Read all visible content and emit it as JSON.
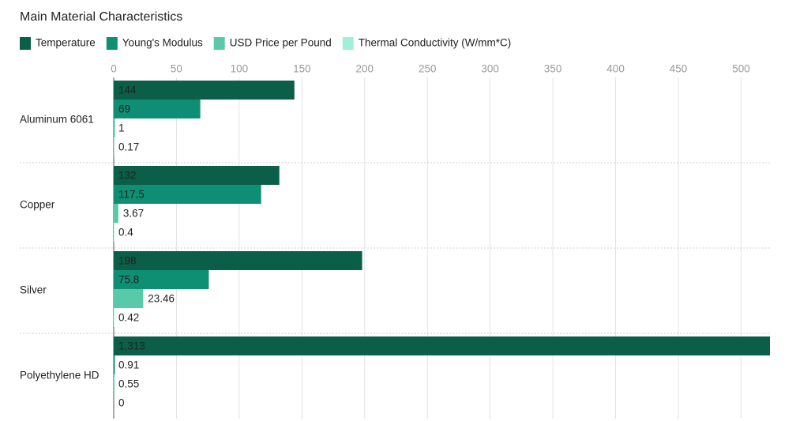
{
  "chart_data": {
    "type": "hbar",
    "title": "Main Material Characteristics",
    "categories": [
      "Aluminum 6061",
      "Copper",
      "Silver",
      "Polyethylene HD"
    ],
    "series": [
      {
        "name": "Temperature",
        "color": "#0b5e47",
        "values": [
          144,
          132,
          198,
          1313
        ],
        "value_labels": [
          "144",
          "132",
          "198",
          "1,313"
        ]
      },
      {
        "name": "Young's Modulus",
        "color": "#0e8f74",
        "values": [
          69,
          117.5,
          75.8,
          0.91
        ]
      },
      {
        "name": "USD Price per Pound",
        "color": "#58c9a9",
        "values": [
          1,
          3.67,
          23.46,
          0.55
        ]
      },
      {
        "name": "Thermal Conductivity (W/mm*C)",
        "color": "#9ff0d8",
        "values": [
          0.17,
          0.4,
          0.42,
          0
        ]
      }
    ],
    "xlim": [
      0,
      523
    ],
    "xticks": [
      0,
      50,
      100,
      150,
      200,
      250,
      300,
      350,
      400,
      450,
      500
    ],
    "grid": true
  }
}
